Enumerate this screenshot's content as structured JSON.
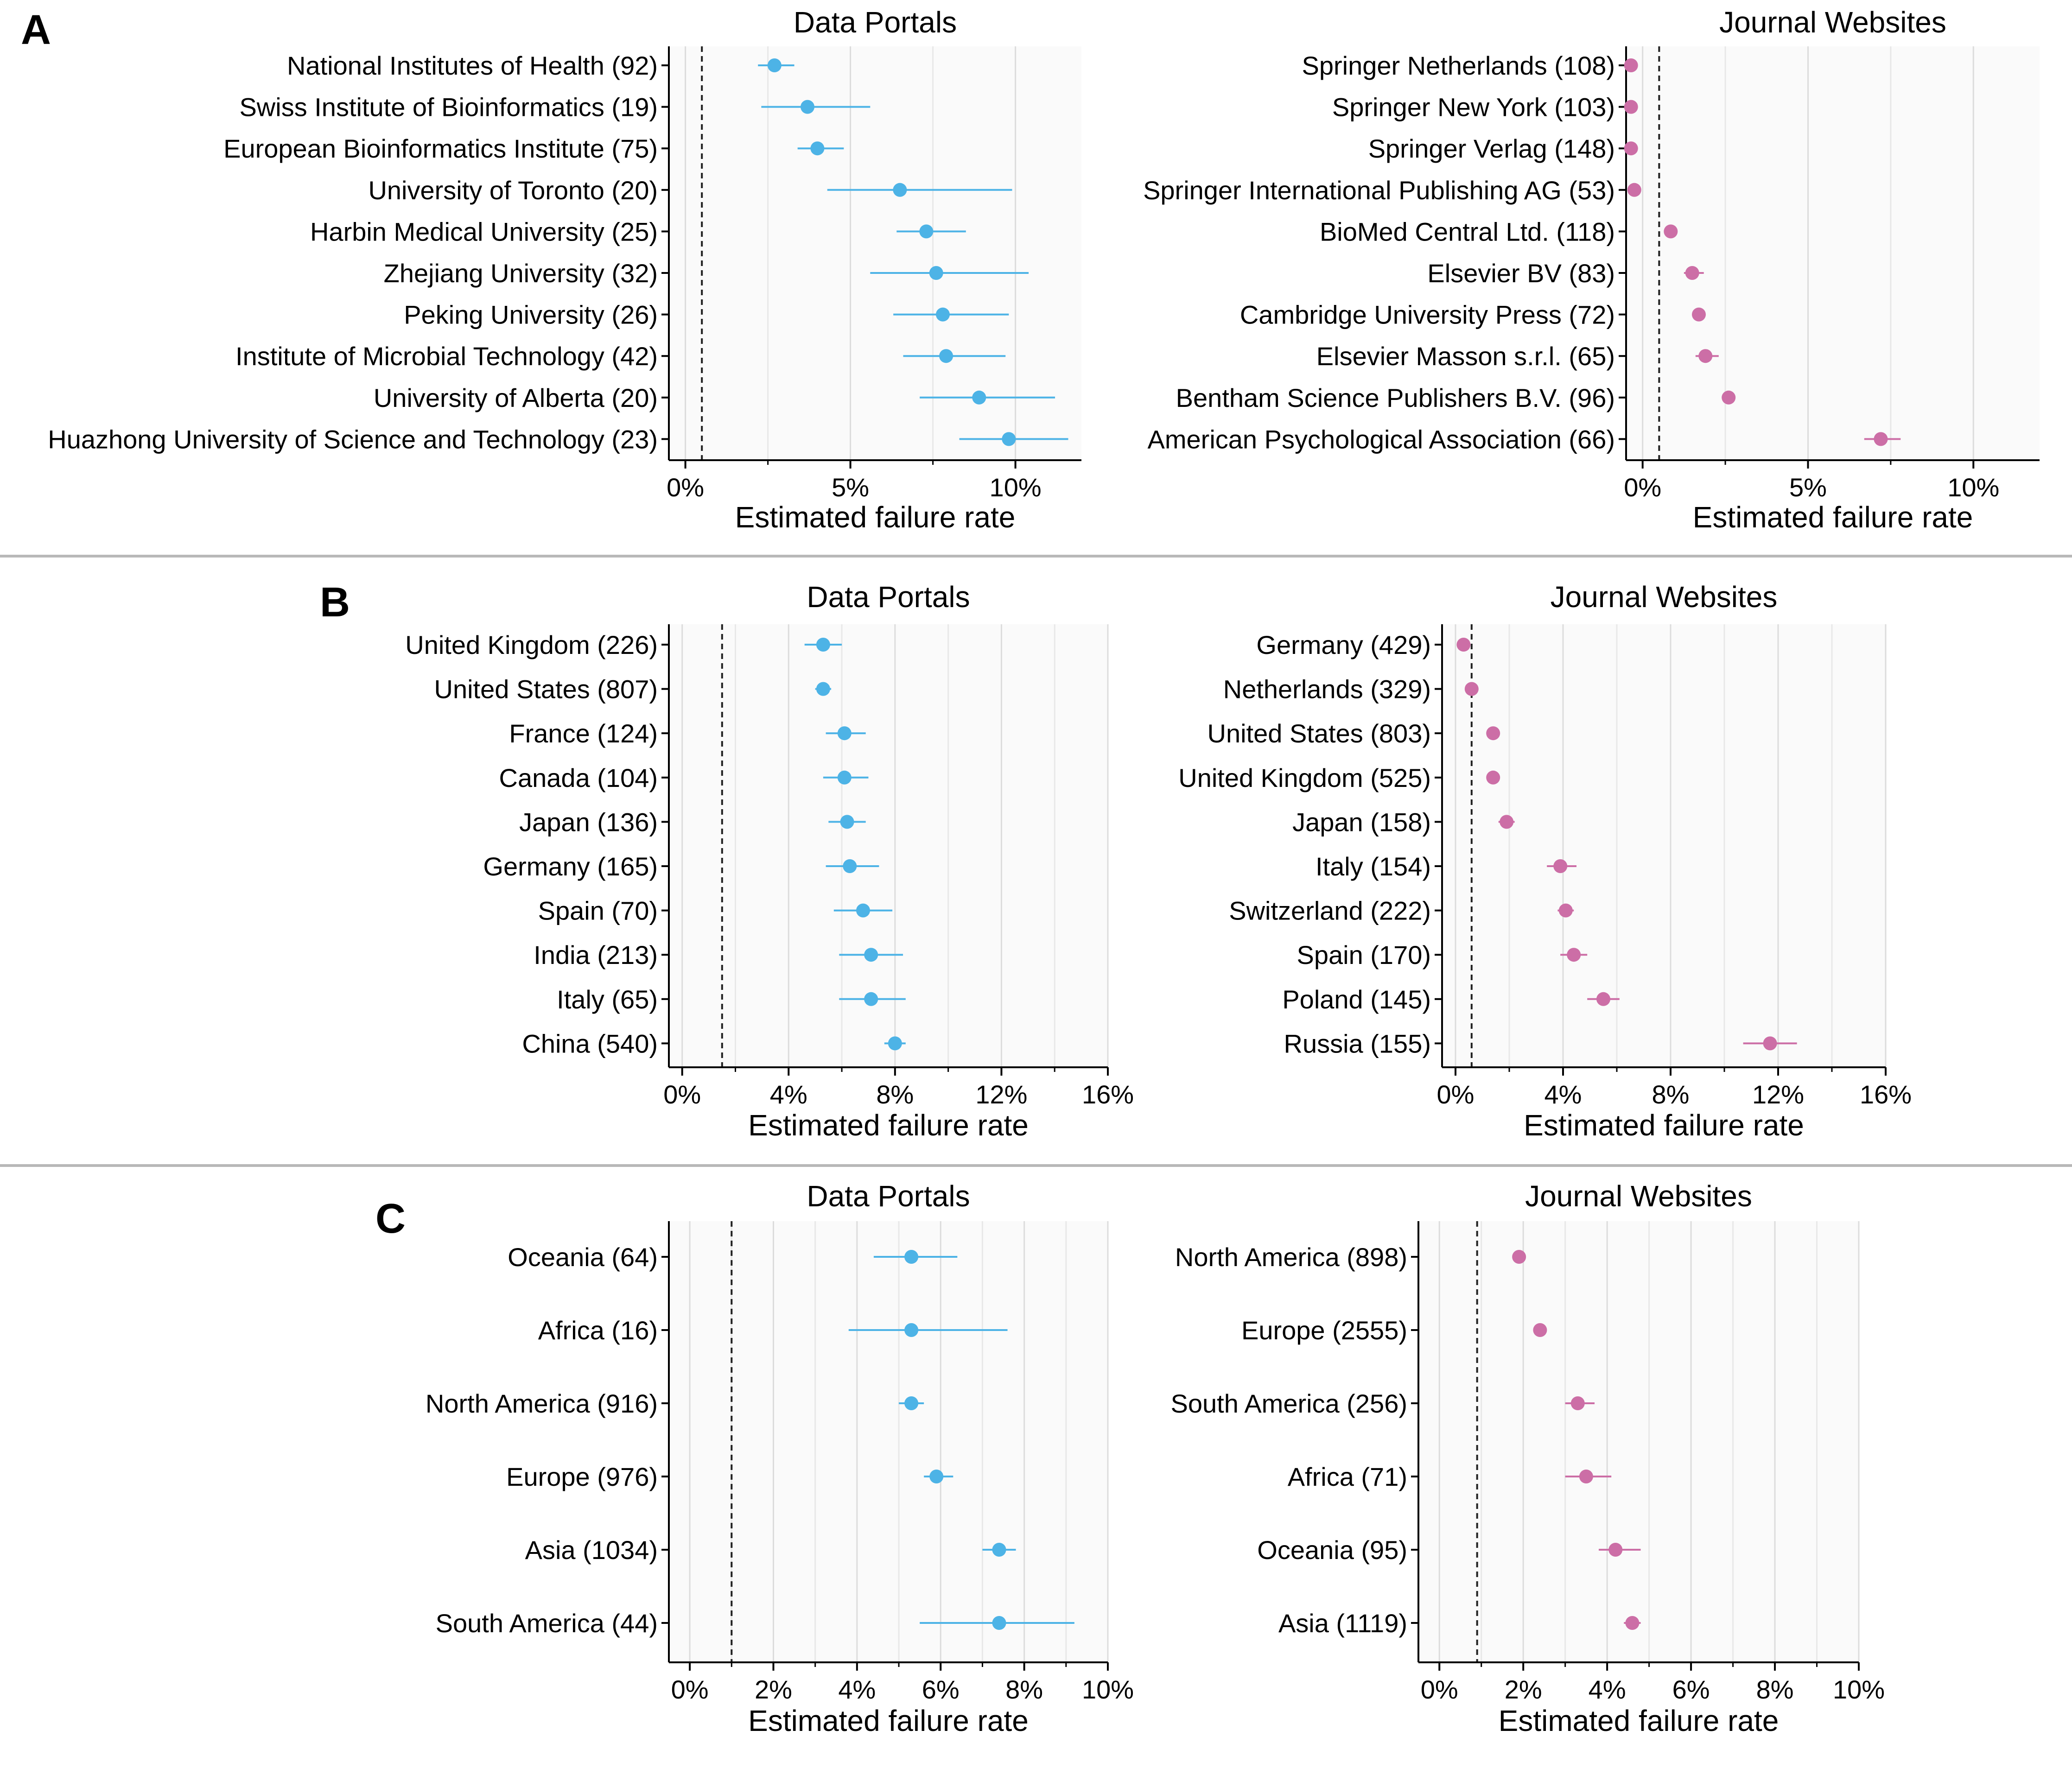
{
  "figure": {
    "panel_letters": [
      "A",
      "B",
      "C"
    ],
    "accent_colors": {
      "data_portals": "#4db3e6",
      "journal_websites": "#cc6ea6"
    }
  },
  "chart_data": [
    {
      "panel": "A",
      "side": "left",
      "type": "scatter",
      "title": "Data Portals",
      "xlabel": "Estimated failure rate",
      "xlim": [
        -0.5,
        12
      ],
      "xticks": [
        0,
        5,
        10
      ],
      "xtick_labels": [
        "0%",
        "5%",
        "10%"
      ],
      "reference_line": 0.5,
      "grid": true,
      "color": "#4db3e6",
      "categories": [
        "National Institutes of Health (92)",
        "Swiss Institute of Bioinformatics (19)",
        "European Bioinformatics Institute (75)",
        "University of Toronto (20)",
        "Harbin Medical University (25)",
        "Zhejiang University (32)",
        "Peking University (26)",
        "Institute of Microbial Technology (42)",
        "University of Alberta (20)",
        "Huazhong University of Science and Technology (23)"
      ],
      "values": [
        2.7,
        3.7,
        4.0,
        6.5,
        7.3,
        7.6,
        7.8,
        7.9,
        8.9,
        9.8
      ],
      "ci_low": [
        2.2,
        2.3,
        3.4,
        4.3,
        6.4,
        5.6,
        6.3,
        6.6,
        7.1,
        8.3
      ],
      "ci_high": [
        3.3,
        5.6,
        4.8,
        9.9,
        8.5,
        10.4,
        9.8,
        9.7,
        11.2,
        11.6
      ]
    },
    {
      "panel": "A",
      "side": "right",
      "type": "scatter",
      "title": "Journal Websites",
      "xlabel": "Estimated failure rate",
      "xlim": [
        -0.5,
        12
      ],
      "xticks": [
        0,
        5,
        10
      ],
      "xtick_labels": [
        "0%",
        "5%",
        "10%"
      ],
      "reference_line": 0.5,
      "grid": true,
      "color": "#cc6ea6",
      "categories": [
        "Springer Netherlands (108)",
        "Springer New York (103)",
        "Springer Verlag (148)",
        "Springer International Publishing AG (53)",
        "BioMed Central Ltd. (118)",
        "Elsevier BV (83)",
        "Cambridge University Press (72)",
        "Elsevier Masson s.r.l. (65)",
        "Bentham Science Publishers B.V. (96)",
        "American Psychological Association (66)"
      ],
      "values": [
        -0.35,
        -0.35,
        -0.35,
        -0.25,
        0.85,
        1.5,
        1.7,
        1.9,
        2.6,
        7.2
      ],
      "ci_low": [
        -0.35,
        -0.35,
        -0.35,
        -0.25,
        0.7,
        1.25,
        1.55,
        1.6,
        2.45,
        6.7
      ],
      "ci_high": [
        -0.35,
        -0.35,
        -0.35,
        -0.25,
        1.0,
        1.85,
        1.85,
        2.3,
        2.75,
        7.8
      ]
    },
    {
      "panel": "B",
      "side": "left",
      "type": "scatter",
      "title": "Data Portals",
      "xlabel": "Estimated failure rate",
      "xlim": [
        -0.5,
        16
      ],
      "xticks": [
        0,
        4,
        8,
        12,
        16
      ],
      "xtick_labels": [
        "0%",
        "4%",
        "8%",
        "12%",
        "16%"
      ],
      "reference_line": 1.5,
      "grid": true,
      "color": "#4db3e6",
      "categories": [
        "United Kingdom (226)",
        "United States (807)",
        "France (124)",
        "Canada (104)",
        "Japan (136)",
        "Germany (165)",
        "Spain (70)",
        "India (213)",
        "Italy (65)",
        "China (540)"
      ],
      "values": [
        5.3,
        5.3,
        6.1,
        6.1,
        6.2,
        6.3,
        6.8,
        7.1,
        7.1,
        8.0
      ],
      "ci_low": [
        4.6,
        5.0,
        5.4,
        5.3,
        5.5,
        5.4,
        5.7,
        5.9,
        5.9,
        7.6
      ],
      "ci_high": [
        6.0,
        5.6,
        6.9,
        7.0,
        6.9,
        7.4,
        7.9,
        8.3,
        8.4,
        8.4
      ]
    },
    {
      "panel": "B",
      "side": "right",
      "type": "scatter",
      "title": "Journal Websites",
      "xlabel": "Estimated failure rate",
      "xlim": [
        -0.5,
        16
      ],
      "xticks": [
        0,
        4,
        8,
        12,
        16
      ],
      "xtick_labels": [
        "0%",
        "4%",
        "8%",
        "12%",
        "16%"
      ],
      "reference_line": 0.6,
      "grid": true,
      "color": "#cc6ea6",
      "categories": [
        "Germany (429)",
        "Netherlands (329)",
        "United States (803)",
        "United Kingdom (525)",
        "Japan (158)",
        "Italy (154)",
        "Switzerland (222)",
        "Spain (170)",
        "Poland (145)",
        "Russia (155)"
      ],
      "values": [
        0.3,
        0.6,
        1.4,
        1.4,
        1.9,
        3.9,
        4.1,
        4.4,
        5.5,
        11.7
      ],
      "ci_low": [
        0.2,
        0.45,
        1.25,
        1.25,
        1.6,
        3.4,
        3.8,
        3.9,
        4.9,
        10.7
      ],
      "ci_high": [
        0.4,
        0.75,
        1.55,
        1.55,
        2.2,
        4.5,
        4.4,
        4.9,
        6.1,
        12.7
      ]
    },
    {
      "panel": "C",
      "side": "left",
      "type": "scatter",
      "title": "Data Portals",
      "xlabel": "Estimated failure rate",
      "xlim": [
        -0.5,
        10
      ],
      "xticks": [
        0,
        2,
        4,
        6,
        8,
        10
      ],
      "xtick_labels": [
        "0%",
        "2%",
        "4%",
        "6%",
        "8%",
        "10%"
      ],
      "reference_line": 1.0,
      "grid": true,
      "color": "#4db3e6",
      "categories": [
        "Oceania (64)",
        "Africa (16)",
        "North America (916)",
        "Europe (976)",
        "Asia (1034)",
        "South America (44)"
      ],
      "values": [
        5.3,
        5.3,
        5.3,
        5.9,
        7.4,
        7.4
      ],
      "ci_low": [
        4.4,
        3.8,
        5.0,
        5.6,
        7.0,
        5.5
      ],
      "ci_high": [
        6.4,
        7.6,
        5.6,
        6.3,
        7.8,
        9.2
      ]
    },
    {
      "panel": "C",
      "side": "right",
      "type": "scatter",
      "title": "Journal Websites",
      "xlabel": "Estimated failure rate",
      "xlim": [
        -0.5,
        10
      ],
      "xticks": [
        0,
        2,
        4,
        6,
        8,
        10
      ],
      "xtick_labels": [
        "0%",
        "2%",
        "4%",
        "6%",
        "8%",
        "10%"
      ],
      "reference_line": 0.9,
      "grid": true,
      "color": "#cc6ea6",
      "categories": [
        "North America (898)",
        "Europe (2555)",
        "South America (256)",
        "Africa (71)",
        "Oceania (95)",
        "Asia (1119)"
      ],
      "values": [
        1.9,
        2.4,
        3.3,
        3.5,
        4.2,
        4.6
      ],
      "ci_low": [
        1.75,
        2.25,
        3.0,
        3.0,
        3.8,
        4.4
      ],
      "ci_high": [
        2.05,
        2.55,
        3.7,
        4.1,
        4.8,
        4.8
      ]
    }
  ]
}
